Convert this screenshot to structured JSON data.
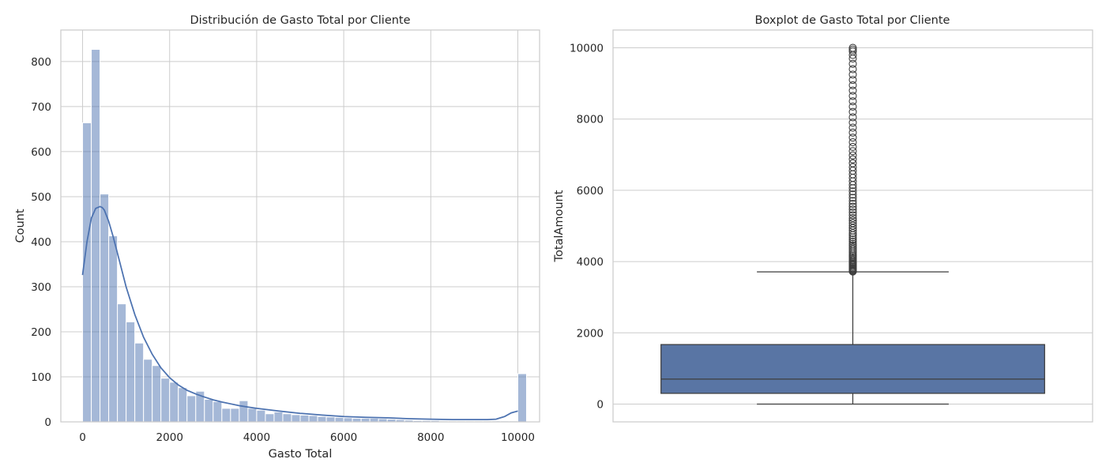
{
  "chart_data": [
    {
      "type": "bar",
      "title": "Distribución de Gasto Total por Cliente",
      "xlabel": "Gasto Total",
      "ylabel": "Count",
      "xlim": [
        -500,
        10500
      ],
      "ylim": [
        0,
        870
      ],
      "xticks": [
        "0",
        "2000",
        "4000",
        "6000",
        "8000",
        "10000"
      ],
      "yticks": [
        "0",
        "100",
        "200",
        "300",
        "400",
        "500",
        "600",
        "700",
        "800"
      ],
      "grid": true,
      "bar_color": "#4c72b0",
      "bar_alpha": 0.5,
      "bins": {
        "start": 0,
        "width": 200,
        "counts": [
          664,
          827,
          506,
          413,
          262,
          222,
          175,
          139,
          125,
          97,
          88,
          76,
          58,
          68,
          50,
          45,
          30,
          30,
          47,
          30,
          26,
          18,
          22,
          18,
          16,
          15,
          14,
          12,
          11,
          10,
          9,
          8,
          8,
          8,
          7,
          6,
          5,
          4,
          3,
          3,
          3,
          2,
          2,
          2,
          2,
          2,
          2,
          2,
          2,
          2,
          107
        ]
      },
      "kde": {
        "name": "KDE",
        "color": "#4c72b0",
        "x": [
          0,
          100,
          200,
          300,
          400,
          450,
          500,
          600,
          700,
          800,
          1000,
          1200,
          1400,
          1600,
          1800,
          2000,
          2200,
          2400,
          2600,
          2800,
          3000,
          3200,
          3400,
          3600,
          3800,
          4000,
          4500,
          5000,
          5500,
          6000,
          6500,
          7000,
          7500,
          8000,
          8500,
          9000,
          9300,
          9500,
          9700,
          9850,
          10000
        ],
        "y": [
          326,
          400,
          452,
          474,
          478,
          476,
          470,
          445,
          412,
          375,
          300,
          238,
          188,
          150,
          120,
          98,
          82,
          70,
          62,
          55,
          49,
          44,
          40,
          36,
          33,
          30,
          24,
          19,
          15,
          12,
          10,
          9,
          7,
          6,
          5,
          5,
          5,
          6,
          12,
          20,
          24
        ]
      }
    },
    {
      "type": "box",
      "title": "Boxplot de Gasto Total por Cliente",
      "xlabel": "",
      "ylabel": "TotalAmount",
      "ylim": [
        -500,
        10500
      ],
      "yticks": [
        "0",
        "2000",
        "4000",
        "6000",
        "8000",
        "10000"
      ],
      "grid": true,
      "box_color": "#5975a4",
      "stats": {
        "whislo": 0,
        "q1": 300,
        "median": 700,
        "q3": 1670,
        "whishi": 3710
      },
      "fliers": [
        3720,
        3740,
        3760,
        3780,
        3800,
        3820,
        3850,
        3880,
        3910,
        3940,
        3970,
        4000,
        4040,
        4080,
        4120,
        4160,
        4200,
        4250,
        4300,
        4350,
        4400,
        4450,
        4500,
        4560,
        4620,
        4680,
        4740,
        4800,
        4870,
        4940,
        5010,
        5080,
        5150,
        5220,
        5300,
        5380,
        5460,
        5540,
        5620,
        5700,
        5790,
        5880,
        5970,
        6060,
        6150,
        6250,
        6350,
        6450,
        6550,
        6650,
        6760,
        6870,
        6980,
        7100,
        7220,
        7350,
        7480,
        7620,
        7760,
        7900,
        8050,
        8200,
        8350,
        8500,
        8650,
        8800,
        8950,
        9100,
        9250,
        9400,
        9550,
        9700,
        9800,
        9900,
        9950,
        10000
      ]
    }
  ]
}
